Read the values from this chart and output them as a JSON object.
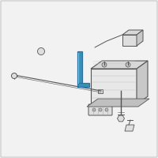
{
  "bg_color": "#f2f2f2",
  "border_color": "#c8c8c8",
  "part_color": "#3a8fb5",
  "line_color": "#555555",
  "highlight_color": "#2a70a0",
  "battery_front": "#e8e8e8",
  "battery_top": "#d8d8d8",
  "battery_side": "#c8c8c8",
  "component_fill": "#dedede",
  "component_dark": "#c0c0c0"
}
